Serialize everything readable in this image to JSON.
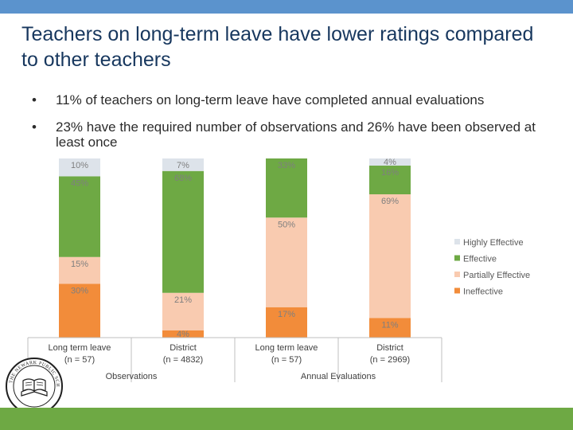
{
  "slide": {
    "title": "Teachers on long-term leave have lower ratings compared to other teachers",
    "bullets": [
      "11% of teachers on long-term leave have completed annual evaluations",
      "23% have the required number of observations and 26% have been observed at least once"
    ],
    "seal_text": "The Newark Public Schools · Newark, New Jersey"
  },
  "chart_data": {
    "type": "bar",
    "stacked": true,
    "percent_stacked": true,
    "categories": [
      "Long term leave\n(n = 57)",
      "District\n(n = 4832)",
      "Long term leave\n(n = 57)",
      "District\n(n = 2969)"
    ],
    "groups": [
      {
        "label": "Observations",
        "categories": [
          0,
          1
        ]
      },
      {
        "label": "Annual Evaluations",
        "categories": [
          2,
          3
        ]
      }
    ],
    "series": [
      {
        "name": "Ineffective",
        "color": "#f28c3a",
        "values": [
          30,
          4,
          17,
          11
        ]
      },
      {
        "name": "Partially Effective",
        "color": "#f9cbb0",
        "values": [
          15,
          21,
          50,
          69
        ]
      },
      {
        "name": "Effective",
        "color": "#6ea944",
        "values": [
          45,
          68,
          33,
          16
        ]
      },
      {
        "name": "Highly Effective",
        "color": "#dde3ea",
        "values": [
          10,
          7,
          0,
          4
        ]
      }
    ],
    "data_labels": [
      [
        "30%",
        "4%",
        "17%",
        "11%"
      ],
      [
        "15%",
        "21%",
        "50%",
        "69%"
      ],
      [
        "45%",
        "68%",
        "33%",
        "16%"
      ],
      [
        "10%",
        "7%",
        "",
        "4%"
      ]
    ],
    "legend": {
      "placement": "right",
      "order": [
        "Highly Effective",
        "Effective",
        "Partially Effective",
        "Ineffective"
      ]
    },
    "ylim": [
      0,
      100
    ],
    "xlabel": "",
    "ylabel": "",
    "grid": false
  }
}
